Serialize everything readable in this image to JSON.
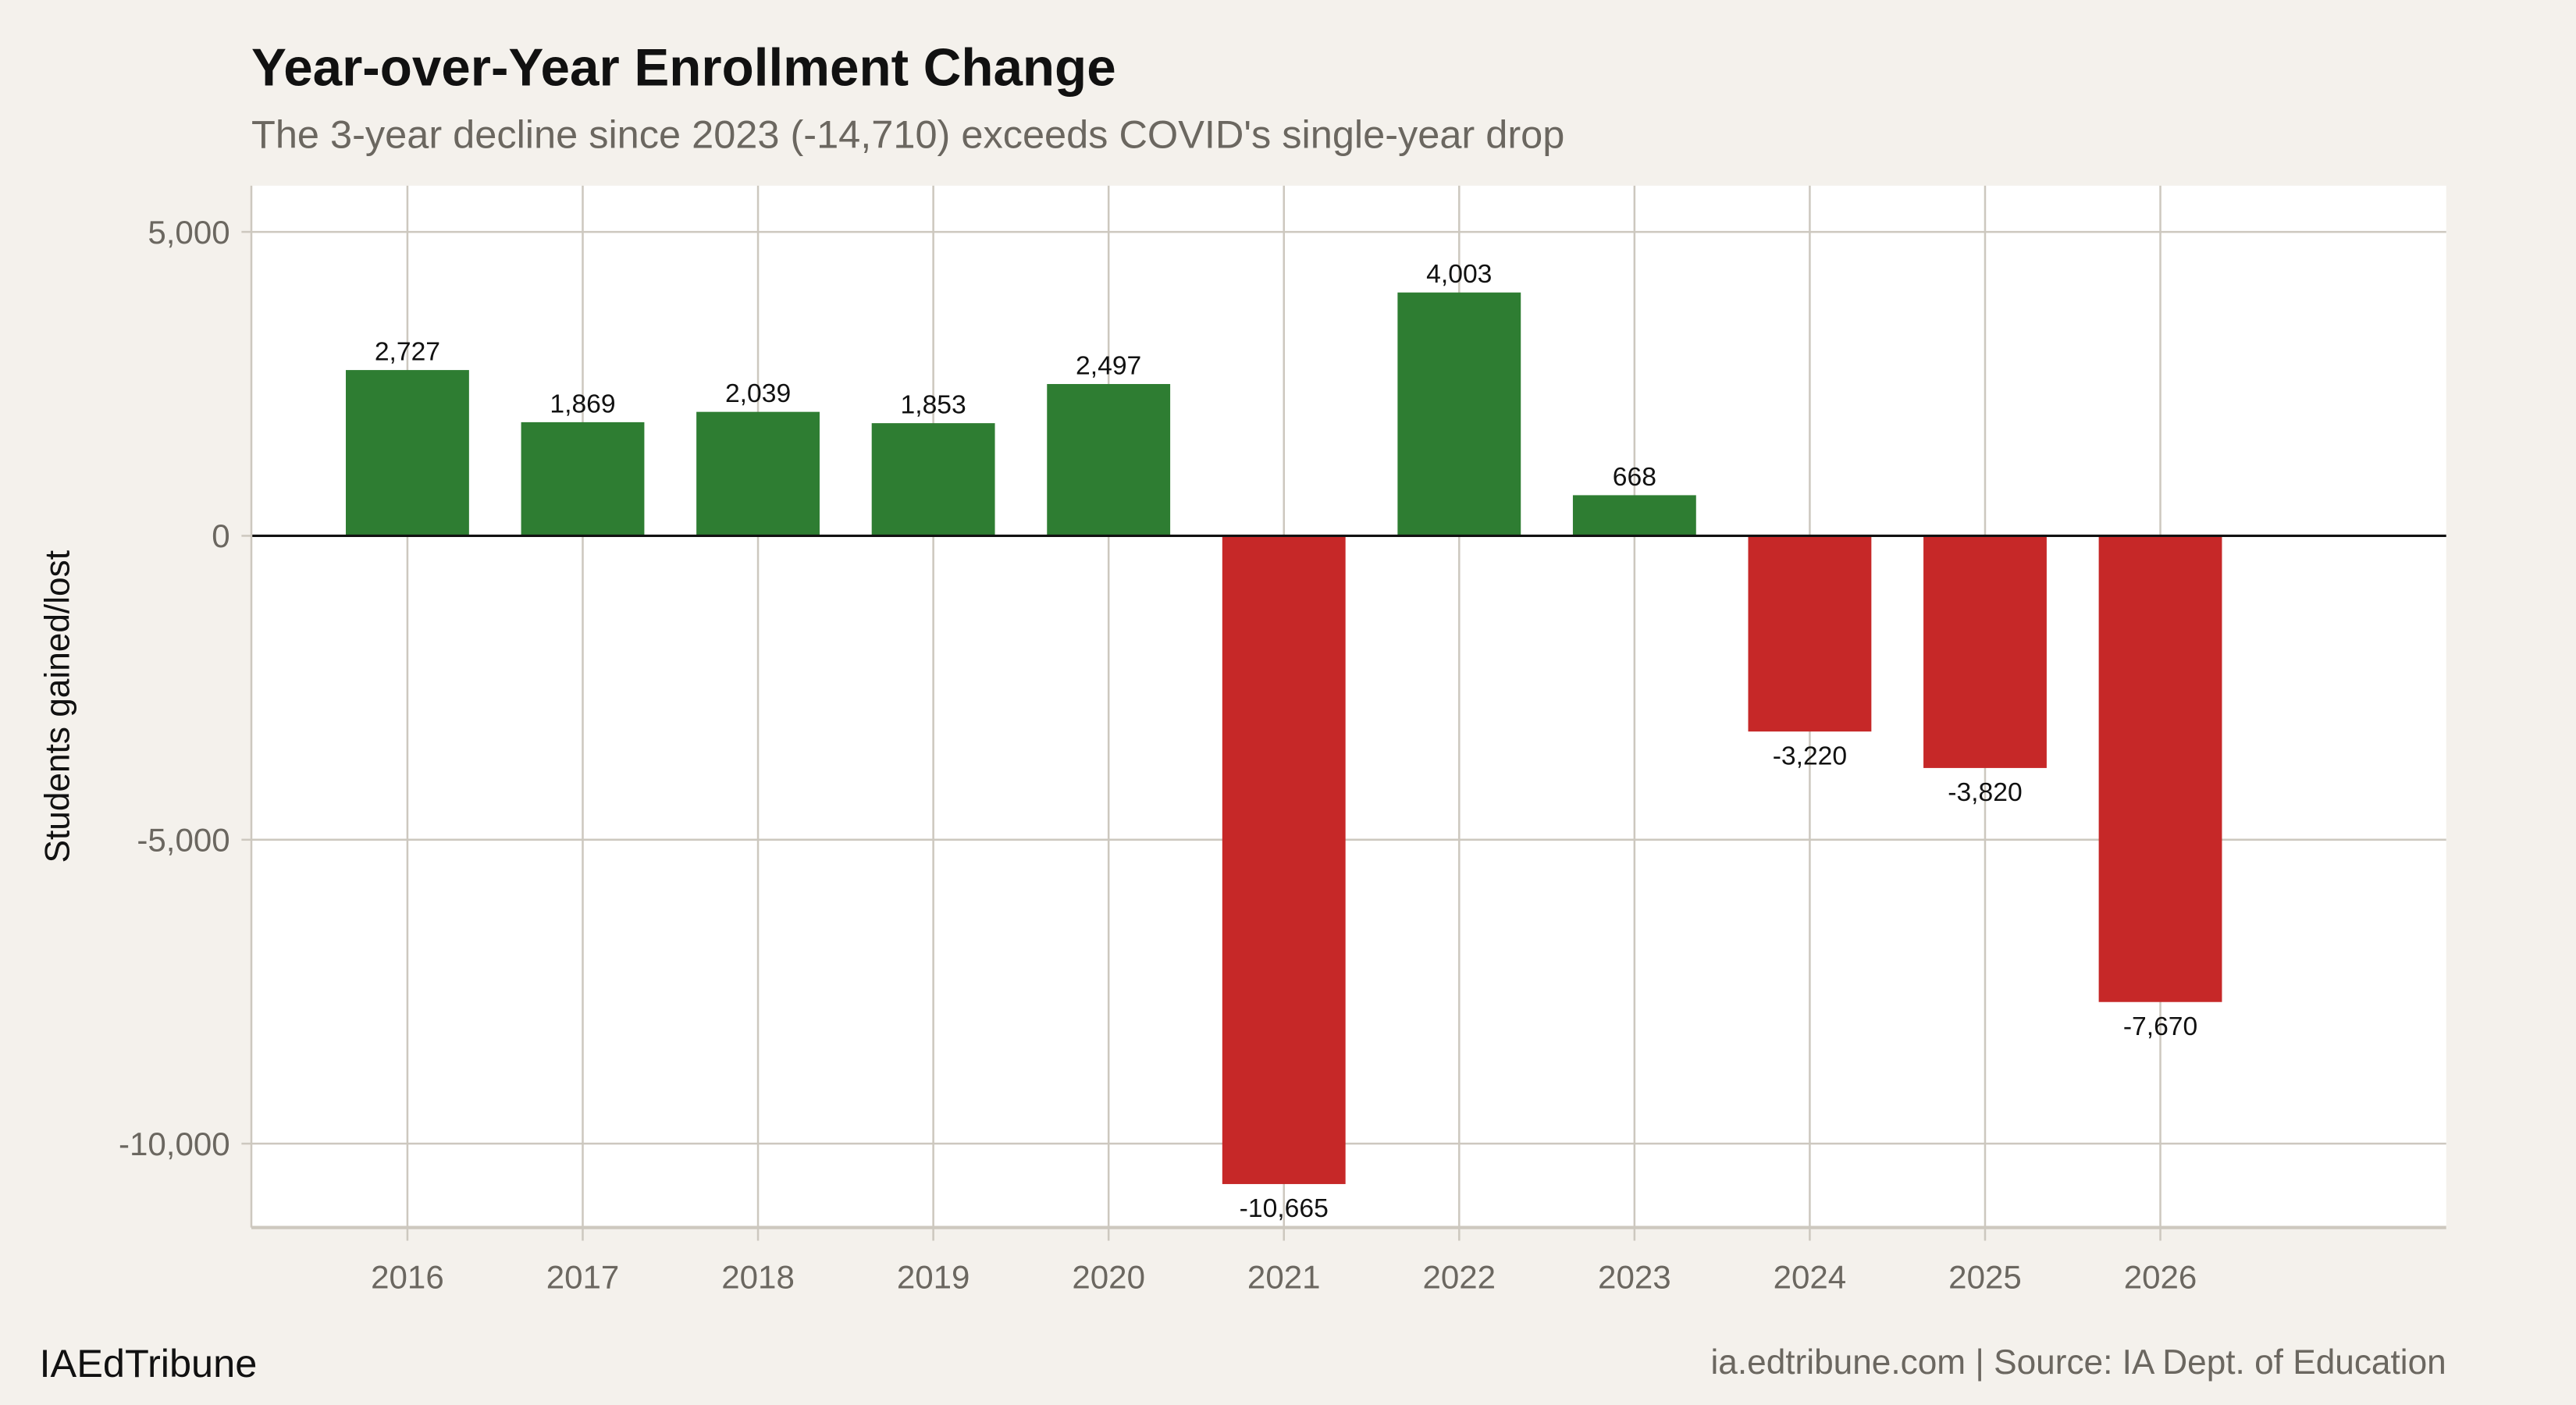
{
  "chart_data": {
    "type": "bar",
    "title": "Year-over-Year Enrollment Change",
    "subtitle": "The 3-year decline since 2023 (-14,710) exceeds COVID's single-year drop",
    "xlabel": "",
    "ylabel": "Students gained/lost",
    "categories": [
      "2016",
      "2017",
      "2018",
      "2019",
      "2020",
      "2021",
      "2022",
      "2023",
      "2024",
      "2025",
      "2026"
    ],
    "values": [
      2727,
      1869,
      2039,
      1853,
      2497,
      -10665,
      4003,
      668,
      -3220,
      -3820,
      -7670
    ],
    "data_labels": [
      "2,727",
      "1,869",
      "2,039",
      "1,853",
      "2,497",
      "-10,665",
      "4,003",
      "668",
      "-3,220",
      "-3,820",
      "-7,670"
    ],
    "yticks": [
      5000,
      0,
      -5000,
      -10000
    ],
    "ytick_labels": [
      "5,000",
      "0",
      "-5,000",
      "-10,000"
    ],
    "ylim": [
      -11380,
      5760
    ],
    "grid": true,
    "legend": "none",
    "colors": {
      "positive": "#2e7d32",
      "negative": "#c62828",
      "background": "#f4f1ec",
      "panel": "#ffffff",
      "grid": "#cdc8bf"
    }
  },
  "footer": {
    "brand": "IAEdTribune",
    "source": "ia.edtribune.com | Source: IA Dept. of Education"
  }
}
